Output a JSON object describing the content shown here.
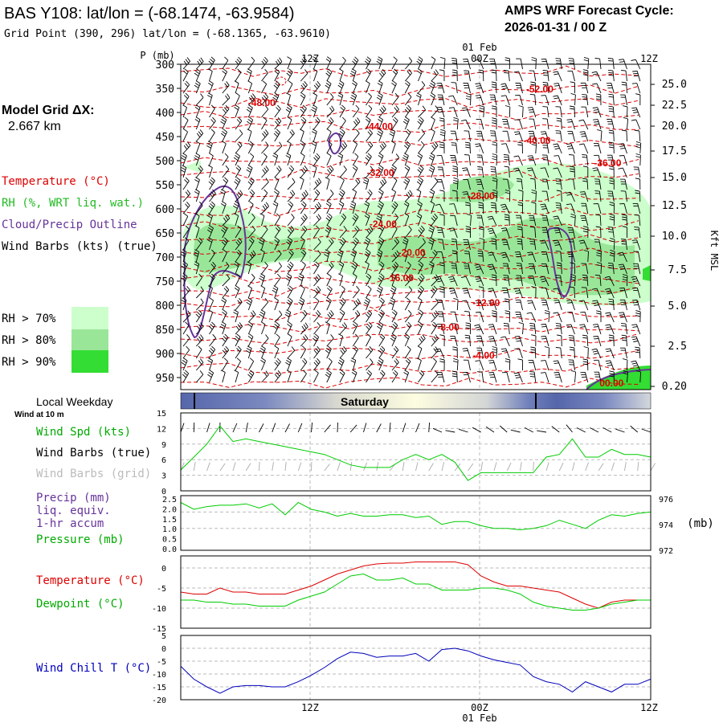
{
  "header": {
    "station": "BAS Y108:  lat/lon = (-68.1474, -63.9584)",
    "grid_point": "Grid Point (390, 296) lat/lon = (-68.1365, -63.9610)",
    "cycle_title": "AMPS WRF Forecast Cycle:",
    "cycle_value": "2026-01-31 / 00  Z",
    "model_grid_label": "Model Grid ΔX:",
    "model_grid_value": "2.667 km"
  },
  "time_axis": {
    "top_date": "01 Feb",
    "bottom_date": "01 Feb",
    "ticks": [
      "12Z",
      "00Z",
      "12Z"
    ]
  },
  "legend": {
    "temperature": "Temperature (°C)",
    "rh": "RH (%, WRT liq. wat.)",
    "cloud": "Cloud/Precip Outline",
    "wind": "Wind Barbs (kts) (true)",
    "rh_levels": [
      {
        "label": "RH > 70%",
        "color": "#ccffcc"
      },
      {
        "label": "RH > 80%",
        "color": "#99e699"
      },
      {
        "label": "RH > 90%",
        "color": "#33dd33"
      }
    ]
  },
  "weekday": {
    "label": "Local Weekday",
    "sublabel": "Wind at 10 m",
    "day": "Saturday"
  },
  "colors": {
    "temperature": "#dd0000",
    "dewpoint": "#00cc00",
    "rh_line": "#22bb22",
    "cloud": "#663399",
    "windchill": "#0000bb",
    "grid_barbs": "#aaaaaa"
  },
  "chart_data": [
    {
      "type": "line",
      "name": "cross-section",
      "ylabel_left": "P (mb)",
      "ylabel_right": "Kft MSL",
      "pressure_ticks": [
        "300",
        "350",
        "400",
        "450",
        "500",
        "550",
        "600",
        "650",
        "700",
        "750",
        "800",
        "850",
        "900",
        "950"
      ],
      "height_ticks": [
        "25.0",
        "22.5",
        "20.0",
        "17.5",
        "15.0",
        "12.5",
        "10.0",
        "7.5",
        "5.0",
        "2.5",
        "0.20"
      ],
      "ylim": [
        975,
        300
      ],
      "xlim": [
        0,
        36
      ],
      "temperature_labels": [
        {
          "text": "-48.00",
          "x": 6.2,
          "p": 380
        },
        {
          "text": "-52.00",
          "x": 27.5,
          "p": 352
        },
        {
          "text": "-44.00",
          "x": 15.2,
          "p": 429
        },
        {
          "text": "-40.00",
          "x": 27.3,
          "p": 458
        },
        {
          "text": "-36.00",
          "x": 32.7,
          "p": 505
        },
        {
          "text": "-32.00",
          "x": 15.3,
          "p": 525
        },
        {
          "text": "-28.00",
          "x": 23.0,
          "p": 573
        },
        {
          "text": "-24.00",
          "x": 15.5,
          "p": 632
        },
        {
          "text": "-20.00",
          "x": 17.7,
          "p": 691
        },
        {
          "text": "-16.00",
          "x": 16.8,
          "p": 743
        },
        {
          "text": "-12.00",
          "x": 23.4,
          "p": 795
        },
        {
          "text": "-8.00",
          "x": 20.5,
          "p": 846
        },
        {
          "text": "-4.00",
          "x": 23.2,
          "p": 904
        },
        {
          "text": "00.00",
          "x": 33.0,
          "p": 962
        }
      ]
    },
    {
      "type": "line",
      "name": "surface-wind",
      "title": "Wind Spd (kts)",
      "labels": [
        "Wind Spd (kts)",
        "Wind Barbs (true)",
        "Wind Barbs (grid)"
      ],
      "yticks": [
        "15",
        "12",
        "9",
        "6",
        "3",
        "0"
      ],
      "ylim": [
        0,
        15
      ],
      "x": [
        0,
        1,
        2,
        3,
        4,
        5,
        6,
        7,
        8,
        9,
        10,
        11,
        12,
        13,
        14,
        15,
        16,
        17,
        18,
        19,
        20,
        21,
        22,
        23,
        24,
        25,
        26,
        27,
        28,
        29,
        30,
        31,
        32,
        33,
        34,
        35,
        36
      ],
      "values": [
        4,
        6.5,
        9,
        12.5,
        9.5,
        10,
        9.5,
        9,
        8.5,
        8,
        7.5,
        7,
        6,
        5,
        4.5,
        4.5,
        4.5,
        6,
        7,
        6,
        7,
        5.5,
        2,
        3.5,
        3.5,
        3.5,
        3.5,
        3.5,
        6.5,
        7,
        10,
        6.5,
        6.5,
        8,
        7,
        7,
        6.5
      ]
    },
    {
      "type": "line",
      "name": "precip-pressure",
      "labels": [
        "Precip (mm)",
        "liq. equiv.",
        "1-hr accum",
        "Pressure (mb)"
      ],
      "yticks_left": [
        "2.5",
        "2.0",
        "1.5",
        "1.0",
        "0.5",
        "0.0"
      ],
      "yticks_right": [
        "976",
        "974",
        "972"
      ],
      "unit_right": "(mb)",
      "ylim": [
        972,
        976
      ],
      "x": [
        0,
        1,
        2,
        3,
        4,
        5,
        6,
        7,
        8,
        9,
        10,
        11,
        12,
        13,
        14,
        15,
        16,
        17,
        18,
        19,
        20,
        21,
        22,
        23,
        24,
        25,
        26,
        27,
        28,
        29,
        30,
        31,
        32,
        33,
        34,
        35,
        36
      ],
      "values": [
        975.5,
        975,
        975.2,
        975.3,
        975.3,
        975.4,
        975.1,
        975.4,
        974.6,
        975.5,
        975,
        974.8,
        974.5,
        974.7,
        974.5,
        974.5,
        974.6,
        974.6,
        974.4,
        974.5,
        973.9,
        974.1,
        974.1,
        973.8,
        973.6,
        973.6,
        973.5,
        973.6,
        973.8,
        974.2,
        973.9,
        973.6,
        974.2,
        974.6,
        974.5,
        974.7,
        974.8
      ]
    },
    {
      "type": "line",
      "name": "temperature-dewpoint",
      "labels": [
        "Temperature (°C)",
        "Dewpoint (°C)"
      ],
      "yticks": [
        "0",
        "-5",
        "-10",
        "-15"
      ],
      "ylim": [
        -15,
        3
      ],
      "x": [
        0,
        1,
        2,
        3,
        4,
        5,
        6,
        7,
        8,
        9,
        10,
        11,
        12,
        13,
        14,
        15,
        16,
        17,
        18,
        19,
        20,
        21,
        22,
        23,
        24,
        25,
        26,
        27,
        28,
        29,
        30,
        31,
        32,
        33,
        34,
        35,
        36
      ],
      "series": [
        {
          "name": "Temperature (°C)",
          "values": [
            -6,
            -6.5,
            -6.5,
            -5,
            -6,
            -6,
            -6.5,
            -6.5,
            -6.5,
            -5.5,
            -4.5,
            -3,
            -1.5,
            -0.5,
            0.5,
            1,
            1.2,
            1.2,
            1.5,
            1.5,
            1.5,
            1.5,
            0.8,
            -2,
            -3.5,
            -4.5,
            -4.5,
            -5,
            -5.5,
            -6,
            -7.5,
            -9,
            -10,
            -8.5,
            -8,
            -8,
            -8
          ]
        },
        {
          "name": "Dewpoint (°C)",
          "values": [
            -8,
            -8,
            -8.5,
            -8.5,
            -9,
            -9,
            -9.5,
            -9.5,
            -9.5,
            -8,
            -7,
            -6,
            -4,
            -2,
            -1.5,
            -3,
            -3,
            -2.5,
            -4,
            -4,
            -5.5,
            -5.5,
            -5.5,
            -5,
            -5,
            -5.5,
            -6.5,
            -8.5,
            -9.5,
            -10,
            -10.5,
            -10.5,
            -10,
            -9,
            -8.5,
            -8,
            -8
          ]
        }
      ]
    },
    {
      "type": "line",
      "name": "wind-chill",
      "title": "Wind Chill T (°C)",
      "yticks": [
        "5",
        "0",
        "-5",
        "-10",
        "-15",
        "-20"
      ],
      "ylim": [
        -20,
        5
      ],
      "x": [
        0,
        1,
        2,
        3,
        4,
        5,
        6,
        7,
        8,
        9,
        10,
        11,
        12,
        13,
        14,
        15,
        16,
        17,
        18,
        19,
        20,
        21,
        22,
        23,
        24,
        25,
        26,
        27,
        28,
        29,
        30,
        31,
        32,
        33,
        34,
        35,
        36
      ],
      "values": [
        -7,
        -12,
        -15,
        -17.5,
        -15,
        -14.5,
        -14.5,
        -15,
        -15,
        -13,
        -10.5,
        -7.5,
        -4,
        -1.5,
        -2,
        -3.5,
        -3,
        -3,
        -2,
        -5,
        -0.5,
        0,
        -1,
        -3,
        -4.5,
        -5.5,
        -6.5,
        -11,
        -13,
        -14,
        -17,
        -13,
        -15,
        -17,
        -14,
        -14,
        -12
      ]
    }
  ]
}
